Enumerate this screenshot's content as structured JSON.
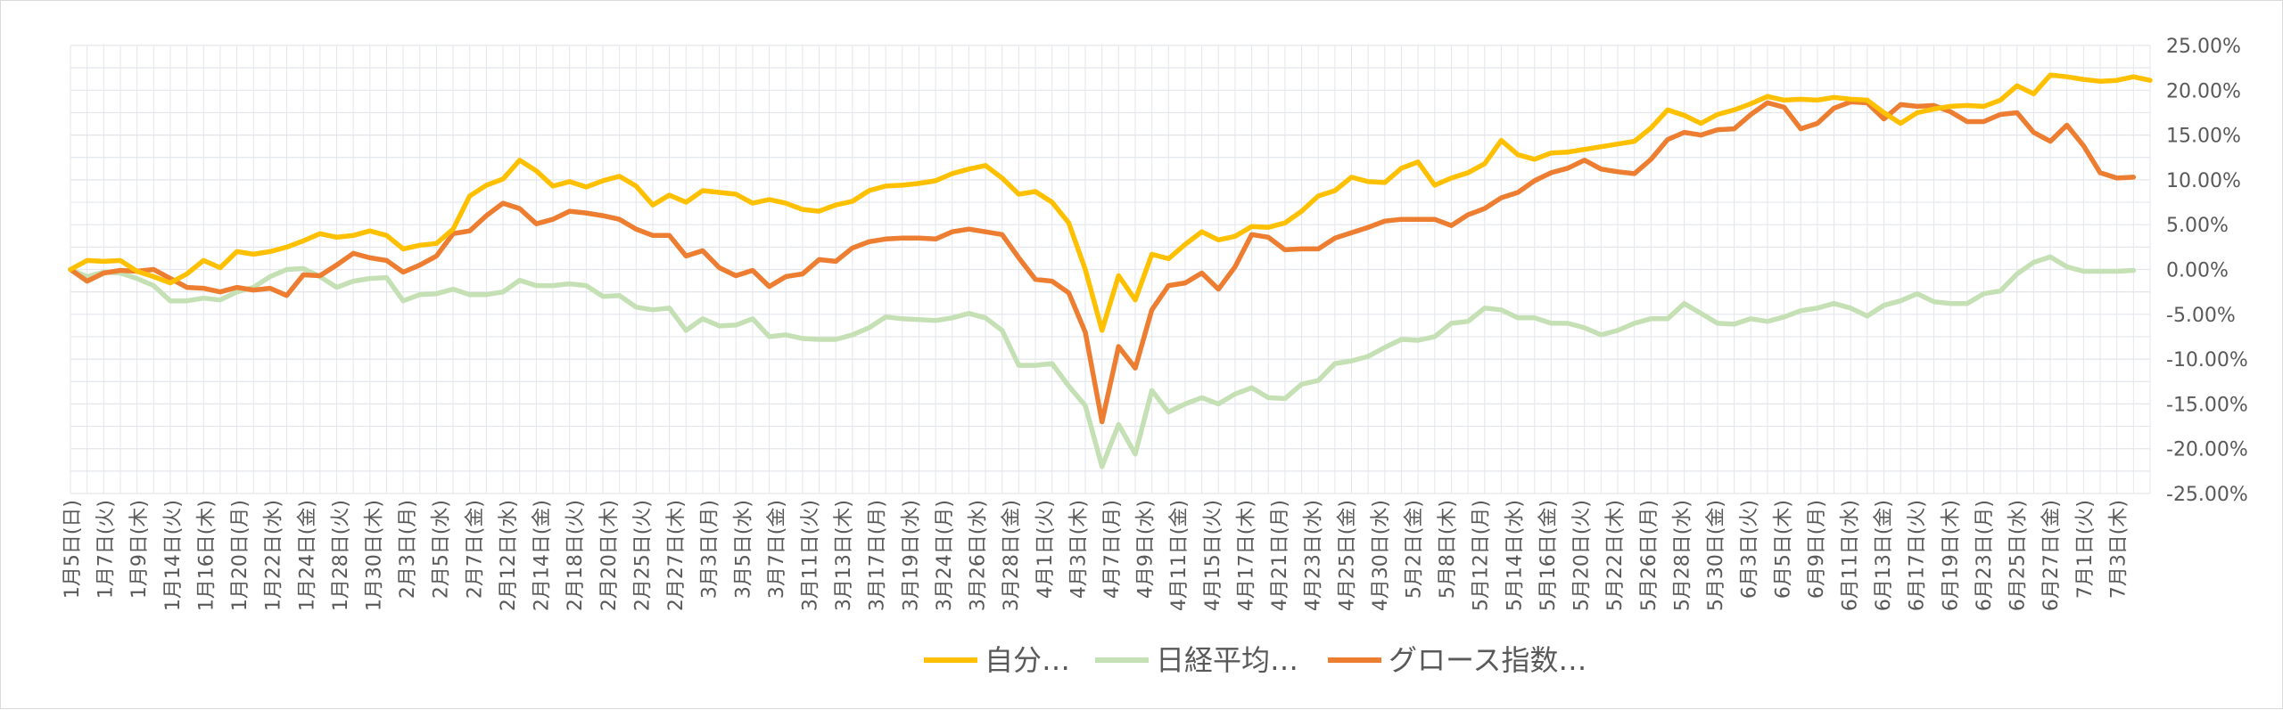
{
  "chart_data": {
    "type": "line",
    "title": "",
    "xlabel": "",
    "ylabel": "",
    "ylim": [
      -25,
      25
    ],
    "y_ticks": [
      "25.00%",
      "20.00%",
      "15.00%",
      "10.00%",
      "5.00%",
      "0.00%",
      "-5.00%",
      "-10.00%",
      "-15.00%",
      "-20.00%",
      "-25.00%"
    ],
    "y_tick_values": [
      25,
      20,
      15,
      10,
      5,
      0,
      -5,
      -10,
      -15,
      -20,
      -25
    ],
    "y_axis_side": "right",
    "grid": true,
    "legend_position": "bottom",
    "x_tick_labels": [
      "1月5日(日)",
      "1月7日(火)",
      "1月9日(木)",
      "1月14日(火)",
      "1月16日(木)",
      "1月20日(月)",
      "1月22日(水)",
      "1月24日(金)",
      "1月28日(火)",
      "1月30日(木)",
      "2月3日(月)",
      "2月5日(水)",
      "2月7日(金)",
      "2月12日(水)",
      "2月14日(金)",
      "2月18日(火)",
      "2月20日(木)",
      "2月25日(火)",
      "2月27日(木)",
      "3月3日(月)",
      "3月5日(水)",
      "3月7日(金)",
      "3月11日(火)",
      "3月13日(木)",
      "3月17日(月)",
      "3月19日(水)",
      "3月24日(月)",
      "3月26日(水)",
      "3月28日(金)",
      "4月1日(火)",
      "4月3日(木)",
      "4月7日(月)",
      "4月9日(水)",
      "4月11日(金)",
      "4月15日(火)",
      "4月17日(木)",
      "4月21日(月)",
      "4月23日(水)",
      "4月25日(金)",
      "4月30日(水)",
      "5月2日(金)",
      "5月8日(木)",
      "5月12日(月)",
      "5月14日(水)",
      "5月16日(金)",
      "5月20日(火)",
      "5月22日(木)",
      "5月26日(月)",
      "5月28日(水)",
      "5月30日(金)",
      "6月3日(火)",
      "6月5日(木)",
      "6月9日(月)",
      "6月11日(水)",
      "6月13日(金)",
      "6月17日(火)",
      "6月19日(木)",
      "6月23日(月)",
      "6月25日(水)",
      "6月27日(金)",
      "7月1日(火)",
      "7月3日(木)"
    ],
    "series": [
      {
        "name": "自分…",
        "color": "#FFC000",
        "values": [
          0,
          1,
          0.9,
          1,
          -0.2,
          -0.8,
          -1.5,
          -0.5,
          1,
          0.2,
          2,
          1.7,
          2,
          2.5,
          3.2,
          4,
          3.6,
          3.8,
          4.3,
          3.8,
          2.3,
          2.7,
          2.9,
          4.5,
          8.2,
          9.4,
          10.1,
          12.2,
          11,
          9.3,
          9.8,
          9.2,
          9.9,
          10.4,
          9.3,
          7.2,
          8.3,
          7.5,
          8.8,
          8.6,
          8.4,
          7.4,
          7.8,
          7.4,
          6.7,
          6.5,
          7.2,
          7.6,
          8.8,
          9.3,
          9.4,
          9.6,
          9.9,
          10.7,
          11.2,
          11.6,
          10.2,
          8.4,
          8.7,
          7.5,
          5.2,
          0,
          -6.8,
          -0.7,
          -3.4,
          1.7,
          1.2,
          2.8,
          4.2,
          3.3,
          3.7,
          4.8,
          4.7,
          5.2,
          6.5,
          8.2,
          8.8,
          10.3,
          9.8,
          9.7,
          11.3,
          12,
          9.4,
          10.2,
          10.8,
          11.8,
          14.4,
          12.8,
          12.3,
          13,
          13.1,
          13.4,
          13.7,
          14,
          14.3,
          15.8,
          17.8,
          17.2,
          16.3,
          17.3,
          17.8,
          18.5,
          19.3,
          18.9,
          19,
          18.9,
          19.2,
          19,
          18.9,
          17.5,
          16.3,
          17.5,
          17.9,
          18.2,
          18.3,
          18.2,
          18.9,
          20.5,
          19.6,
          21.7,
          21.5,
          21.2,
          21,
          21.1,
          21.5,
          21.1
        ]
      },
      {
        "name": "日経平均…",
        "color": "#C5E0B4",
        "values": [
          0,
          -0.8,
          -0.3,
          -0.4,
          -1,
          -1.8,
          -3.5,
          -3.5,
          -3.2,
          -3.4,
          -2.5,
          -2,
          -0.8,
          0,
          0.1,
          -0.8,
          -2,
          -1.3,
          -1,
          -0.9,
          -3.5,
          -2.8,
          -2.7,
          -2.2,
          -2.8,
          -2.8,
          -2.5,
          -1.2,
          -1.8,
          -1.8,
          -1.6,
          -1.8,
          -3,
          -2.9,
          -4.2,
          -4.5,
          -4.3,
          -6.8,
          -5.5,
          -6.3,
          -6.2,
          -5.5,
          -7.5,
          -7.3,
          -7.7,
          -7.8,
          -7.8,
          -7.3,
          -6.5,
          -5.3,
          -5.5,
          -5.6,
          -5.7,
          -5.4,
          -4.9,
          -5.4,
          -6.8,
          -10.7,
          -10.7,
          -10.5,
          -13,
          -15.2,
          -22,
          -17.3,
          -20.6,
          -13.5,
          -15.9,
          -15,
          -14.3,
          -15,
          -13.9,
          -13.2,
          -14.3,
          -14.4,
          -12.8,
          -12.4,
          -10.5,
          -10.2,
          -9.7,
          -8.7,
          -7.8,
          -7.9,
          -7.5,
          -6,
          -5.8,
          -4.3,
          -4.5,
          -5.4,
          -5.4,
          -6,
          -6,
          -6.5,
          -7.3,
          -6.8,
          -6,
          -5.5,
          -5.5,
          -3.8,
          -4.9,
          -6,
          -6.1,
          -5.5,
          -5.8,
          -5.3,
          -4.6,
          -4.3,
          -3.8,
          -4.3,
          -5.2,
          -4,
          -3.5,
          -2.7,
          -3.6,
          -3.8,
          -3.8,
          -2.7,
          -2.4,
          -0.5,
          0.8,
          1.4,
          0.3,
          -0.2,
          -0.2,
          -0.2,
          -0.1
        ]
      },
      {
        "name": "グロース指数…",
        "color": "#ED7D31",
        "values": [
          0,
          -1.3,
          -0.4,
          -0.1,
          -0.2,
          0,
          -1,
          -2,
          -2.1,
          -2.5,
          -2,
          -2.3,
          -2.1,
          -2.9,
          -0.6,
          -0.7,
          0.5,
          1.8,
          1.3,
          1,
          -0.3,
          0.5,
          1.5,
          4,
          4.3,
          6,
          7.4,
          6.8,
          5.1,
          5.6,
          6.5,
          6.3,
          6,
          5.6,
          4.5,
          3.8,
          3.8,
          1.5,
          2.1,
          0.2,
          -0.7,
          -0.1,
          -1.9,
          -0.8,
          -0.5,
          1.1,
          0.9,
          2.4,
          3.1,
          3.4,
          3.5,
          3.5,
          3.4,
          4.2,
          4.5,
          4.2,
          3.9,
          1.3,
          -1.1,
          -1.3,
          -2.6,
          -7,
          -17,
          -8.6,
          -11,
          -4.5,
          -1.8,
          -1.5,
          -0.4,
          -2.2,
          0.3,
          3.9,
          3.6,
          2.2,
          2.3,
          2.3,
          3.5,
          4.1,
          4.7,
          5.4,
          5.6,
          5.6,
          5.6,
          4.9,
          6.1,
          6.8,
          8,
          8.6,
          9.9,
          10.8,
          11.3,
          12.2,
          11.2,
          10.9,
          10.7,
          12.3,
          14.5,
          15.3,
          15,
          15.6,
          15.7,
          17.3,
          18.6,
          18.1,
          15.7,
          16.3,
          18,
          18.7,
          18.6,
          16.8,
          18.4,
          18.2,
          18.3,
          17.6,
          16.5,
          16.5,
          17.3,
          17.5,
          15.3,
          14.3,
          16.1,
          13.8,
          10.8,
          10.2,
          10.3
        ]
      }
    ]
  }
}
